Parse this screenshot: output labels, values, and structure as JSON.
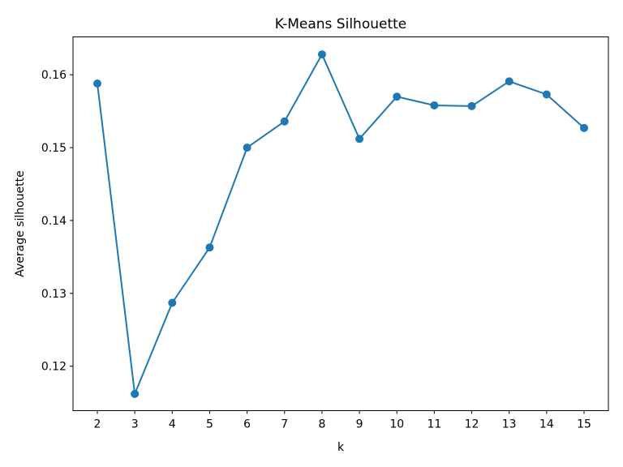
{
  "chart_data": {
    "type": "line",
    "title": "K-Means Silhouette",
    "xlabel": "k",
    "ylabel": "Average silhouette",
    "x": [
      2,
      3,
      4,
      5,
      6,
      7,
      8,
      9,
      10,
      11,
      12,
      13,
      14,
      15
    ],
    "series": [
      {
        "values": [
          0.1588,
          0.1162,
          0.1287,
          0.1363,
          0.15,
          0.1536,
          0.1628,
          0.1512,
          0.157,
          0.1558,
          0.1557,
          0.1591,
          0.1573,
          0.1527
        ],
        "color": "#1f77b4",
        "marker": "circle"
      }
    ],
    "xticks": [
      "2",
      "3",
      "4",
      "5",
      "6",
      "7",
      "8",
      "9",
      "10",
      "11",
      "12",
      "13",
      "14",
      "15"
    ],
    "yticks": [
      "0.12",
      "0.13",
      "0.14",
      "0.15",
      "0.16"
    ],
    "ytick_values": [
      0.12,
      0.13,
      0.14,
      0.15,
      0.16
    ],
    "xlim": [
      1.35,
      15.65
    ],
    "ylim": [
      0.1139,
      0.1652
    ],
    "grid": false
  }
}
